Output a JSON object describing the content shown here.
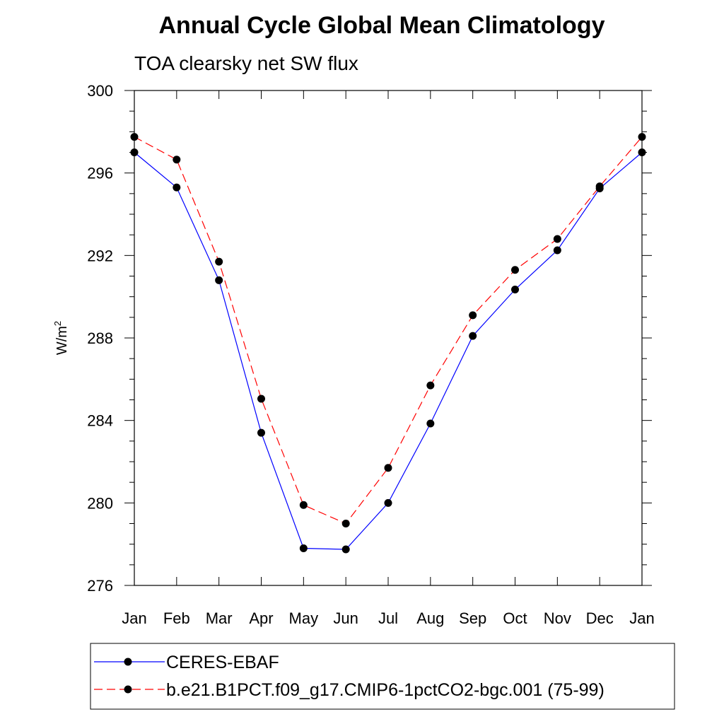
{
  "chart_data": {
    "type": "line",
    "title": "Annual Cycle Global Mean Climatology",
    "subtitle": "TOA clearsky net SW flux",
    "ylabel_base": "W/m",
    "ylabel_sup": "2",
    "xlabel": "",
    "categories": [
      "Jan",
      "Feb",
      "Mar",
      "Apr",
      "May",
      "Jun",
      "Jul",
      "Aug",
      "Sep",
      "Oct",
      "Nov",
      "Dec",
      "Jan"
    ],
    "ylim": [
      276,
      300
    ],
    "yticks": [
      276,
      280,
      284,
      288,
      292,
      296,
      300
    ],
    "grid": false,
    "legend_position": "bottom",
    "series": [
      {
        "name": "CERES-EBAF",
        "color": "#0000ff",
        "dash": "solid",
        "values": [
          297.0,
          295.3,
          290.8,
          283.4,
          277.8,
          277.75,
          280.0,
          283.85,
          288.1,
          290.35,
          292.25,
          295.25,
          297.0
        ]
      },
      {
        "name": "b.e21.B1PCT.f09_g17.CMIP6-1pctCO2-bgc.001 (75-99)",
        "color": "#ff0000",
        "dash": "dashed",
        "values": [
          297.75,
          296.65,
          291.7,
          285.05,
          279.9,
          279.0,
          281.7,
          285.7,
          289.1,
          291.3,
          292.8,
          295.35,
          297.75
        ]
      }
    ]
  }
}
